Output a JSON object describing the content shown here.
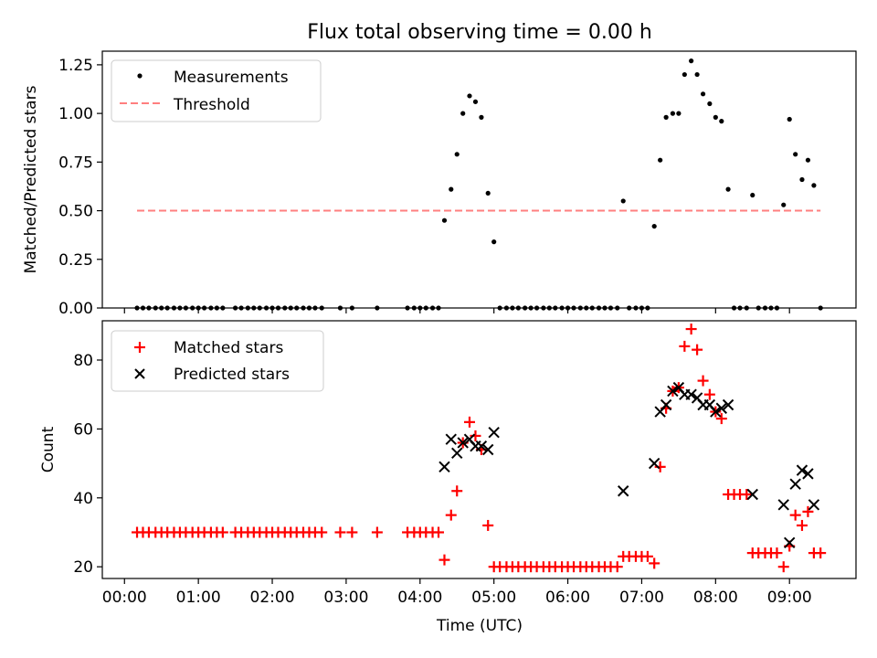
{
  "title": "Flux total observing time = 0.00 h",
  "colors": {
    "measurements": "#000000",
    "threshold": "#ff7f7f",
    "matched": "#ff0000",
    "predicted": "#000000"
  },
  "chart_data": [
    {
      "type": "scatter",
      "panel": "top",
      "title": "Flux total observing time = 0.00 h",
      "xlabel": "",
      "ylabel": "Matched/Predicted stars",
      "xlim": [
        -0.3,
        9.9
      ],
      "ylim": [
        0,
        1.32
      ],
      "yticks": [
        0.0,
        0.25,
        0.5,
        0.75,
        1.0,
        1.25
      ],
      "ytick_labels": [
        "0.00",
        "0.25",
        "0.50",
        "0.75",
        "1.00",
        "1.25"
      ],
      "legend_position": "top-left",
      "series": [
        {
          "name": "Measurements",
          "marker": "dot",
          "color": "#000000",
          "points": [
            [
              0.17,
              0
            ],
            [
              0.25,
              0
            ],
            [
              0.33,
              0
            ],
            [
              0.42,
              0
            ],
            [
              0.5,
              0
            ],
            [
              0.58,
              0
            ],
            [
              0.67,
              0
            ],
            [
              0.75,
              0
            ],
            [
              0.83,
              0
            ],
            [
              0.92,
              0
            ],
            [
              1.0,
              0
            ],
            [
              1.08,
              0
            ],
            [
              1.17,
              0
            ],
            [
              1.25,
              0
            ],
            [
              1.33,
              0
            ],
            [
              1.5,
              0
            ],
            [
              1.58,
              0
            ],
            [
              1.67,
              0
            ],
            [
              1.75,
              0
            ],
            [
              1.83,
              0
            ],
            [
              1.92,
              0
            ],
            [
              2.0,
              0
            ],
            [
              2.08,
              0
            ],
            [
              2.17,
              0
            ],
            [
              2.25,
              0
            ],
            [
              2.33,
              0
            ],
            [
              2.42,
              0
            ],
            [
              2.5,
              0
            ],
            [
              2.58,
              0
            ],
            [
              2.67,
              0
            ],
            [
              2.92,
              0
            ],
            [
              3.08,
              0
            ],
            [
              3.42,
              0
            ],
            [
              3.83,
              0
            ],
            [
              3.92,
              0
            ],
            [
              4.0,
              0
            ],
            [
              4.08,
              0
            ],
            [
              4.17,
              0
            ],
            [
              4.25,
              0
            ],
            [
              4.33,
              0.45
            ],
            [
              4.42,
              0.61
            ],
            [
              4.5,
              0.79
            ],
            [
              4.58,
              1.0
            ],
            [
              4.67,
              1.09
            ],
            [
              4.75,
              1.06
            ],
            [
              4.83,
              0.98
            ],
            [
              4.92,
              0.59
            ],
            [
              5.0,
              0.34
            ],
            [
              5.08,
              0
            ],
            [
              5.17,
              0
            ],
            [
              5.25,
              0
            ],
            [
              5.33,
              0
            ],
            [
              5.42,
              0
            ],
            [
              5.5,
              0
            ],
            [
              5.58,
              0
            ],
            [
              5.67,
              0
            ],
            [
              5.75,
              0
            ],
            [
              5.83,
              0
            ],
            [
              5.92,
              0
            ],
            [
              6.0,
              0
            ],
            [
              6.08,
              0
            ],
            [
              6.17,
              0
            ],
            [
              6.25,
              0
            ],
            [
              6.33,
              0
            ],
            [
              6.42,
              0
            ],
            [
              6.5,
              0
            ],
            [
              6.58,
              0
            ],
            [
              6.67,
              0
            ],
            [
              6.75,
              0.55
            ],
            [
              6.83,
              0
            ],
            [
              6.92,
              0
            ],
            [
              7.0,
              0
            ],
            [
              7.08,
              0
            ],
            [
              7.17,
              0.42
            ],
            [
              7.25,
              0.76
            ],
            [
              7.33,
              0.98
            ],
            [
              7.42,
              1.0
            ],
            [
              7.5,
              1.0
            ],
            [
              7.58,
              1.2
            ],
            [
              7.67,
              1.27
            ],
            [
              7.75,
              1.2
            ],
            [
              7.83,
              1.1
            ],
            [
              7.92,
              1.05
            ],
            [
              8.0,
              0.98
            ],
            [
              8.08,
              0.96
            ],
            [
              8.17,
              0.61
            ],
            [
              8.25,
              0
            ],
            [
              8.33,
              0
            ],
            [
              8.42,
              0
            ],
            [
              8.5,
              0.58
            ],
            [
              8.58,
              0
            ],
            [
              8.67,
              0
            ],
            [
              8.75,
              0
            ],
            [
              8.83,
              0
            ],
            [
              8.92,
              0.53
            ],
            [
              9.0,
              0.97
            ],
            [
              9.08,
              0.79
            ],
            [
              9.17,
              0.66
            ],
            [
              9.25,
              0.76
            ],
            [
              9.33,
              0.63
            ],
            [
              9.42,
              0
            ]
          ]
        },
        {
          "name": "Threshold",
          "marker": "dashed-line",
          "color": "#ff7f7f",
          "points": [
            [
              0.17,
              0.5
            ],
            [
              9.42,
              0.5
            ]
          ]
        }
      ]
    },
    {
      "type": "scatter",
      "panel": "bottom",
      "xlabel": "Time (UTC)",
      "ylabel": "Count",
      "xlim": [
        -0.3,
        9.9
      ],
      "ylim": [
        16.6,
        91.4
      ],
      "xticks": [
        0,
        1,
        2,
        3,
        4,
        5,
        6,
        7,
        8,
        9
      ],
      "xtick_labels": [
        "00:00",
        "01:00",
        "02:00",
        "03:00",
        "04:00",
        "05:00",
        "06:00",
        "07:00",
        "08:00",
        "09:00"
      ],
      "yticks": [
        20,
        40,
        60,
        80
      ],
      "ytick_labels": [
        "20",
        "40",
        "60",
        "80"
      ],
      "legend_position": "top-left",
      "series": [
        {
          "name": "Matched stars",
          "marker": "plus",
          "color": "#ff0000",
          "points": [
            [
              0.17,
              30
            ],
            [
              0.25,
              30
            ],
            [
              0.33,
              30
            ],
            [
              0.42,
              30
            ],
            [
              0.5,
              30
            ],
            [
              0.58,
              30
            ],
            [
              0.67,
              30
            ],
            [
              0.75,
              30
            ],
            [
              0.83,
              30
            ],
            [
              0.92,
              30
            ],
            [
              1.0,
              30
            ],
            [
              1.08,
              30
            ],
            [
              1.17,
              30
            ],
            [
              1.25,
              30
            ],
            [
              1.33,
              30
            ],
            [
              1.5,
              30
            ],
            [
              1.58,
              30
            ],
            [
              1.67,
              30
            ],
            [
              1.75,
              30
            ],
            [
              1.83,
              30
            ],
            [
              1.92,
              30
            ],
            [
              2.0,
              30
            ],
            [
              2.08,
              30
            ],
            [
              2.17,
              30
            ],
            [
              2.25,
              30
            ],
            [
              2.33,
              30
            ],
            [
              2.42,
              30
            ],
            [
              2.5,
              30
            ],
            [
              2.58,
              30
            ],
            [
              2.67,
              30
            ],
            [
              2.92,
              30
            ],
            [
              3.08,
              30
            ],
            [
              3.42,
              30
            ],
            [
              3.83,
              30
            ],
            [
              3.92,
              30
            ],
            [
              4.0,
              30
            ],
            [
              4.08,
              30
            ],
            [
              4.17,
              30
            ],
            [
              4.25,
              30
            ],
            [
              4.33,
              22
            ],
            [
              4.42,
              35
            ],
            [
              4.5,
              42
            ],
            [
              4.58,
              56
            ],
            [
              4.67,
              62
            ],
            [
              4.75,
              58
            ],
            [
              4.83,
              54
            ],
            [
              4.92,
              32
            ],
            [
              5.0,
              20
            ],
            [
              5.08,
              20
            ],
            [
              5.17,
              20
            ],
            [
              5.25,
              20
            ],
            [
              5.33,
              20
            ],
            [
              5.42,
              20
            ],
            [
              5.5,
              20
            ],
            [
              5.58,
              20
            ],
            [
              5.67,
              20
            ],
            [
              5.75,
              20
            ],
            [
              5.83,
              20
            ],
            [
              5.92,
              20
            ],
            [
              6.0,
              20
            ],
            [
              6.08,
              20
            ],
            [
              6.17,
              20
            ],
            [
              6.25,
              20
            ],
            [
              6.33,
              20
            ],
            [
              6.42,
              20
            ],
            [
              6.5,
              20
            ],
            [
              6.58,
              20
            ],
            [
              6.67,
              20
            ],
            [
              6.75,
              23
            ],
            [
              6.83,
              23
            ],
            [
              6.92,
              23
            ],
            [
              7.0,
              23
            ],
            [
              7.08,
              23
            ],
            [
              7.17,
              21
            ],
            [
              7.25,
              49
            ],
            [
              7.33,
              66
            ],
            [
              7.42,
              71
            ],
            [
              7.5,
              72
            ],
            [
              7.58,
              84
            ],
            [
              7.67,
              89
            ],
            [
              7.75,
              83
            ],
            [
              7.83,
              74
            ],
            [
              7.92,
              70
            ],
            [
              8.0,
              65
            ],
            [
              8.08,
              63
            ],
            [
              8.17,
              41
            ],
            [
              8.25,
              41
            ],
            [
              8.33,
              41
            ],
            [
              8.42,
              41
            ],
            [
              8.5,
              24
            ],
            [
              8.58,
              24
            ],
            [
              8.67,
              24
            ],
            [
              8.75,
              24
            ],
            [
              8.83,
              24
            ],
            [
              8.92,
              20
            ],
            [
              9.0,
              26
            ],
            [
              9.08,
              35
            ],
            [
              9.17,
              32
            ],
            [
              9.25,
              36
            ],
            [
              9.33,
              24
            ],
            [
              9.42,
              24
            ]
          ]
        },
        {
          "name": "Predicted stars",
          "marker": "x",
          "color": "#000000",
          "points": [
            [
              4.33,
              49
            ],
            [
              4.42,
              57
            ],
            [
              4.5,
              53
            ],
            [
              4.58,
              56
            ],
            [
              4.67,
              57
            ],
            [
              4.75,
              55
            ],
            [
              4.83,
              55
            ],
            [
              4.92,
              54
            ],
            [
              5.0,
              59
            ],
            [
              6.75,
              42
            ],
            [
              7.17,
              50
            ],
            [
              7.25,
              65
            ],
            [
              7.33,
              67
            ],
            [
              7.42,
              71
            ],
            [
              7.5,
              72
            ],
            [
              7.58,
              70
            ],
            [
              7.67,
              70
            ],
            [
              7.75,
              69
            ],
            [
              7.83,
              67
            ],
            [
              7.92,
              67
            ],
            [
              8.0,
              65
            ],
            [
              8.08,
              66
            ],
            [
              8.17,
              67
            ],
            [
              8.5,
              41
            ],
            [
              8.92,
              38
            ],
            [
              9.0,
              27
            ],
            [
              9.08,
              44
            ],
            [
              9.17,
              48
            ],
            [
              9.25,
              47
            ],
            [
              9.33,
              38
            ]
          ]
        }
      ]
    }
  ]
}
